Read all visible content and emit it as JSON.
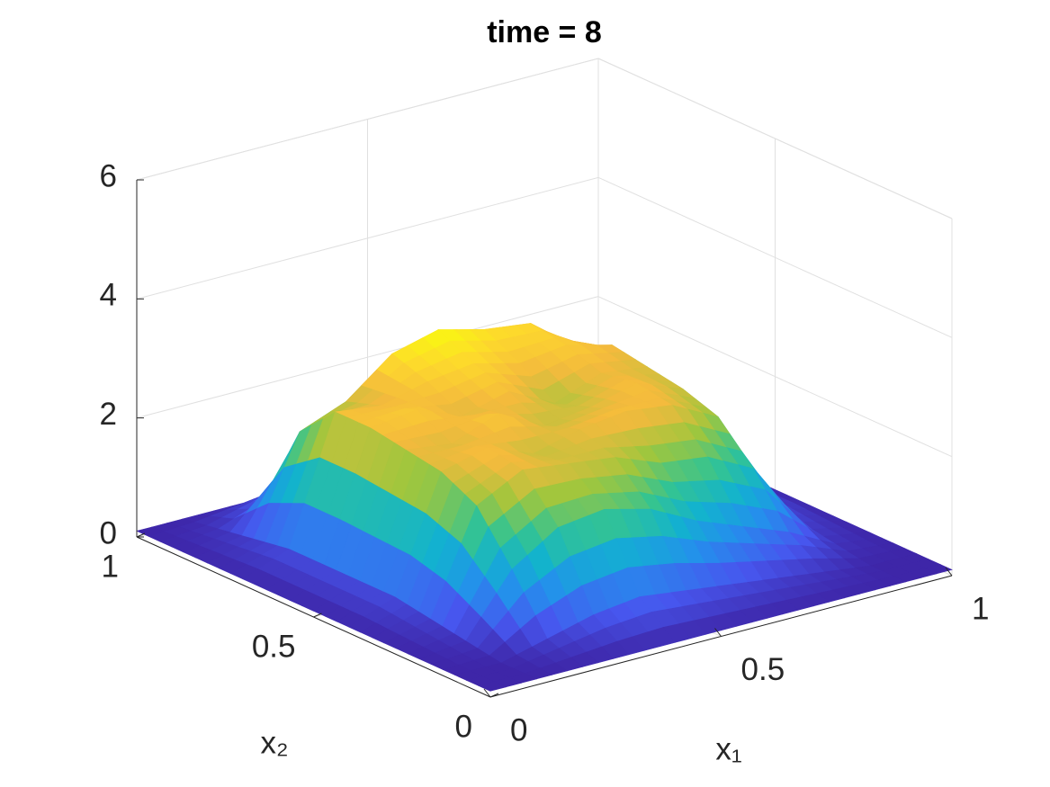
{
  "chart_data": {
    "type": "surface",
    "title": "time = 8",
    "xlabel": "x₁",
    "ylabel": "x₂",
    "x": [
      0,
      0.1,
      0.2,
      0.3,
      0.4,
      0.5,
      0.6,
      0.7,
      0.8,
      0.9,
      1
    ],
    "y": [
      0,
      0.1,
      0.2,
      0.3,
      0.4,
      0.5,
      0.6,
      0.7,
      0.8,
      0.9,
      1
    ],
    "z": [
      [
        0.1,
        0.1,
        0.1,
        0.1,
        0.1,
        0.1,
        0.1,
        0.1,
        0.1,
        0.1,
        0.1
      ],
      [
        0.1,
        0.1,
        0.3,
        0.5,
        0.6,
        0.5,
        0.4,
        0.3,
        0.2,
        0.1,
        0.1
      ],
      [
        0.1,
        0.2,
        1.2,
        1.7,
        1.8,
        1.6,
        1.2,
        0.9,
        0.6,
        0.2,
        0.1
      ],
      [
        0.1,
        0.3,
        2.0,
        2.4,
        2.3,
        2.2,
        1.9,
        1.8,
        1.4,
        0.3,
        0.1
      ],
      [
        0.1,
        0.4,
        2.3,
        2.5,
        2.2,
        2.4,
        2.5,
        2.4,
        2.0,
        0.4,
        0.1
      ],
      [
        0.1,
        0.4,
        2.4,
        2.3,
        2.6,
        2.2,
        2.3,
        2.5,
        2.2,
        0.4,
        0.1
      ],
      [
        0.1,
        0.4,
        2.5,
        2.6,
        2.3,
        2.5,
        2.1,
        2.4,
        2.3,
        0.4,
        0.1
      ],
      [
        0.1,
        0.4,
        2.5,
        2.4,
        2.6,
        2.7,
        2.5,
        2.6,
        2.4,
        0.4,
        0.1
      ],
      [
        0.1,
        0.3,
        1.9,
        2.2,
        2.8,
        3.0,
        2.8,
        2.7,
        2.1,
        0.3,
        0.1
      ],
      [
        0.1,
        0.2,
        0.5,
        0.8,
        1.2,
        1.3,
        1.1,
        0.9,
        0.5,
        0.2,
        0.1
      ],
      [
        0.1,
        0.1,
        0.1,
        0.1,
        0.1,
        0.1,
        0.1,
        0.1,
        0.1,
        0.1,
        0.1
      ]
    ],
    "xlim": [
      0,
      1
    ],
    "ylim": [
      0,
      1
    ],
    "zlim": [
      0,
      6
    ],
    "xticks": [
      0,
      0.5,
      1
    ],
    "yticks": [
      0,
      0.5,
      1
    ],
    "zticks": [
      0,
      2,
      4,
      6
    ],
    "grid": true,
    "colormap": "parula"
  }
}
